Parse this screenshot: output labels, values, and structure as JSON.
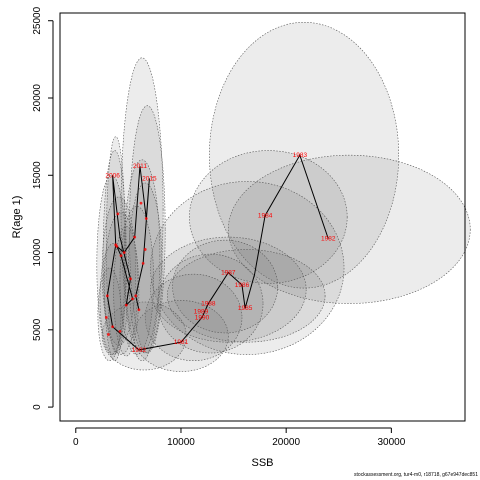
{
  "chart_data": {
    "type": "scatter",
    "xlabel": "SSB",
    "ylabel": "R(age 1)",
    "xlim": [
      -1500,
      37000
    ],
    "ylim": [
      -900,
      25500
    ],
    "xticks": [
      0,
      10000,
      20000,
      30000
    ],
    "yticks": [
      0,
      5000,
      10000,
      15000,
      20000,
      25000
    ],
    "grid": false,
    "legend": "none",
    "colors": {
      "line": "#000000",
      "labels": "#ff0000",
      "ellipse_fill": "#707070",
      "ellipse_stroke": "#555555"
    },
    "labeled_points": [
      {
        "label": "1981",
        "x": 10000,
        "y": 4200
      },
      {
        "label": "1982",
        "x": 24000,
        "y": 10900
      },
      {
        "label": "1983",
        "x": 21300,
        "y": 16300
      },
      {
        "label": "1984",
        "x": 18000,
        "y": 12400
      },
      {
        "label": "1985",
        "x": 16100,
        "y": 6400
      },
      {
        "label": "1986",
        "x": 15800,
        "y": 7900
      },
      {
        "label": "1987",
        "x": 14500,
        "y": 8700
      },
      {
        "label": "1988",
        "x": 12600,
        "y": 6700
      },
      {
        "label": "1989",
        "x": 11900,
        "y": 6200
      },
      {
        "label": "1990",
        "x": 12000,
        "y": 5800
      },
      {
        "label": "1992",
        "x": 6000,
        "y": 3700
      },
      {
        "label": "2006",
        "x": 3500,
        "y": 15000
      },
      {
        "label": "2011",
        "x": 6100,
        "y": 15600
      },
      {
        "label": "2015",
        "x": 7000,
        "y": 14800
      }
    ],
    "trajectory": [
      [
        24000,
        10900
      ],
      [
        21300,
        16300
      ],
      [
        18000,
        12400
      ],
      [
        17000,
        8600
      ],
      [
        16100,
        6400
      ],
      [
        15800,
        7900
      ],
      [
        14500,
        8700
      ],
      [
        12600,
        6700
      ],
      [
        12000,
        5800
      ],
      [
        10000,
        4200
      ],
      [
        6000,
        3700
      ],
      [
        3500,
        5200
      ],
      [
        3000,
        7200
      ],
      [
        3800,
        10500
      ],
      [
        3500,
        15000
      ],
      [
        4200,
        11000
      ],
      [
        5200,
        8300
      ],
      [
        4800,
        6600
      ],
      [
        5400,
        7000
      ],
      [
        4300,
        9800
      ],
      [
        3900,
        10400
      ],
      [
        4600,
        10000
      ],
      [
        5600,
        11000
      ],
      [
        6100,
        15600
      ],
      [
        6700,
        12200
      ],
      [
        7000,
        14800
      ],
      [
        6400,
        9300
      ],
      [
        5700,
        7200
      ],
      [
        6000,
        6300
      ]
    ],
    "unlabeled_points": [
      [
        3800,
        10500
      ],
      [
        4300,
        9800
      ],
      [
        3900,
        10400
      ],
      [
        4600,
        10000
      ],
      [
        5600,
        11000
      ],
      [
        3000,
        7200
      ],
      [
        5200,
        8300
      ],
      [
        4800,
        6600
      ],
      [
        5400,
        7000
      ],
      [
        6700,
        12200
      ],
      [
        6400,
        9300
      ],
      [
        5700,
        7200
      ],
      [
        6000,
        6300
      ],
      [
        3500,
        5200
      ],
      [
        2900,
        5800
      ],
      [
        4200,
        4900
      ],
      [
        3100,
        4700
      ],
      [
        6200,
        13200
      ],
      [
        6600,
        10200
      ],
      [
        4000,
        12500
      ]
    ],
    "confidence_ellipses": [
      {
        "cx": 21700,
        "cy": 16300,
        "rx": 9000,
        "ry": 8600
      },
      {
        "cx": 26000,
        "cy": 11500,
        "rx": 11500,
        "ry": 4800
      },
      {
        "cx": 18300,
        "cy": 12300,
        "rx": 7500,
        "ry": 4300
      },
      {
        "cx": 16300,
        "cy": 9000,
        "rx": 9200,
        "ry": 5600
      },
      {
        "cx": 14500,
        "cy": 7600,
        "rx": 7400,
        "ry": 3400
      },
      {
        "cx": 16200,
        "cy": 7200,
        "rx": 7500,
        "ry": 3000
      },
      {
        "cx": 14200,
        "cy": 7800,
        "rx": 5000,
        "ry": 3000
      },
      {
        "cx": 12800,
        "cy": 6700,
        "rx": 5000,
        "ry": 3200
      },
      {
        "cx": 11200,
        "cy": 5800,
        "rx": 4600,
        "ry": 2800
      },
      {
        "cx": 10000,
        "cy": 4600,
        "rx": 4500,
        "ry": 2300
      },
      {
        "cx": 6500,
        "cy": 4600,
        "rx": 4000,
        "ry": 2200
      },
      {
        "cx": 3800,
        "cy": 10500,
        "rx": 900,
        "ry": 7000
      },
      {
        "cx": 3700,
        "cy": 9800,
        "rx": 1100,
        "ry": 6800
      },
      {
        "cx": 3400,
        "cy": 9200,
        "rx": 1400,
        "ry": 5800
      },
      {
        "cx": 4100,
        "cy": 8800,
        "rx": 1600,
        "ry": 4800
      },
      {
        "cx": 3600,
        "cy": 7000,
        "rx": 1300,
        "ry": 3600
      },
      {
        "cx": 4300,
        "cy": 8000,
        "rx": 1600,
        "ry": 4600
      },
      {
        "cx": 3200,
        "cy": 6000,
        "rx": 1100,
        "ry": 3000
      },
      {
        "cx": 4800,
        "cy": 7500,
        "rx": 1200,
        "ry": 4200
      },
      {
        "cx": 6300,
        "cy": 12800,
        "rx": 2000,
        "ry": 9800
      },
      {
        "cx": 6800,
        "cy": 11500,
        "rx": 1700,
        "ry": 8000
      },
      {
        "cx": 6300,
        "cy": 9800,
        "rx": 1700,
        "ry": 6200
      },
      {
        "cx": 5800,
        "cy": 8200,
        "rx": 1600,
        "ry": 4800
      },
      {
        "cx": 6600,
        "cy": 9000,
        "rx": 1600,
        "ry": 5500
      }
    ]
  },
  "footnote": "stockassessment.org, tur4-m0, r18718, g67e947dec851"
}
